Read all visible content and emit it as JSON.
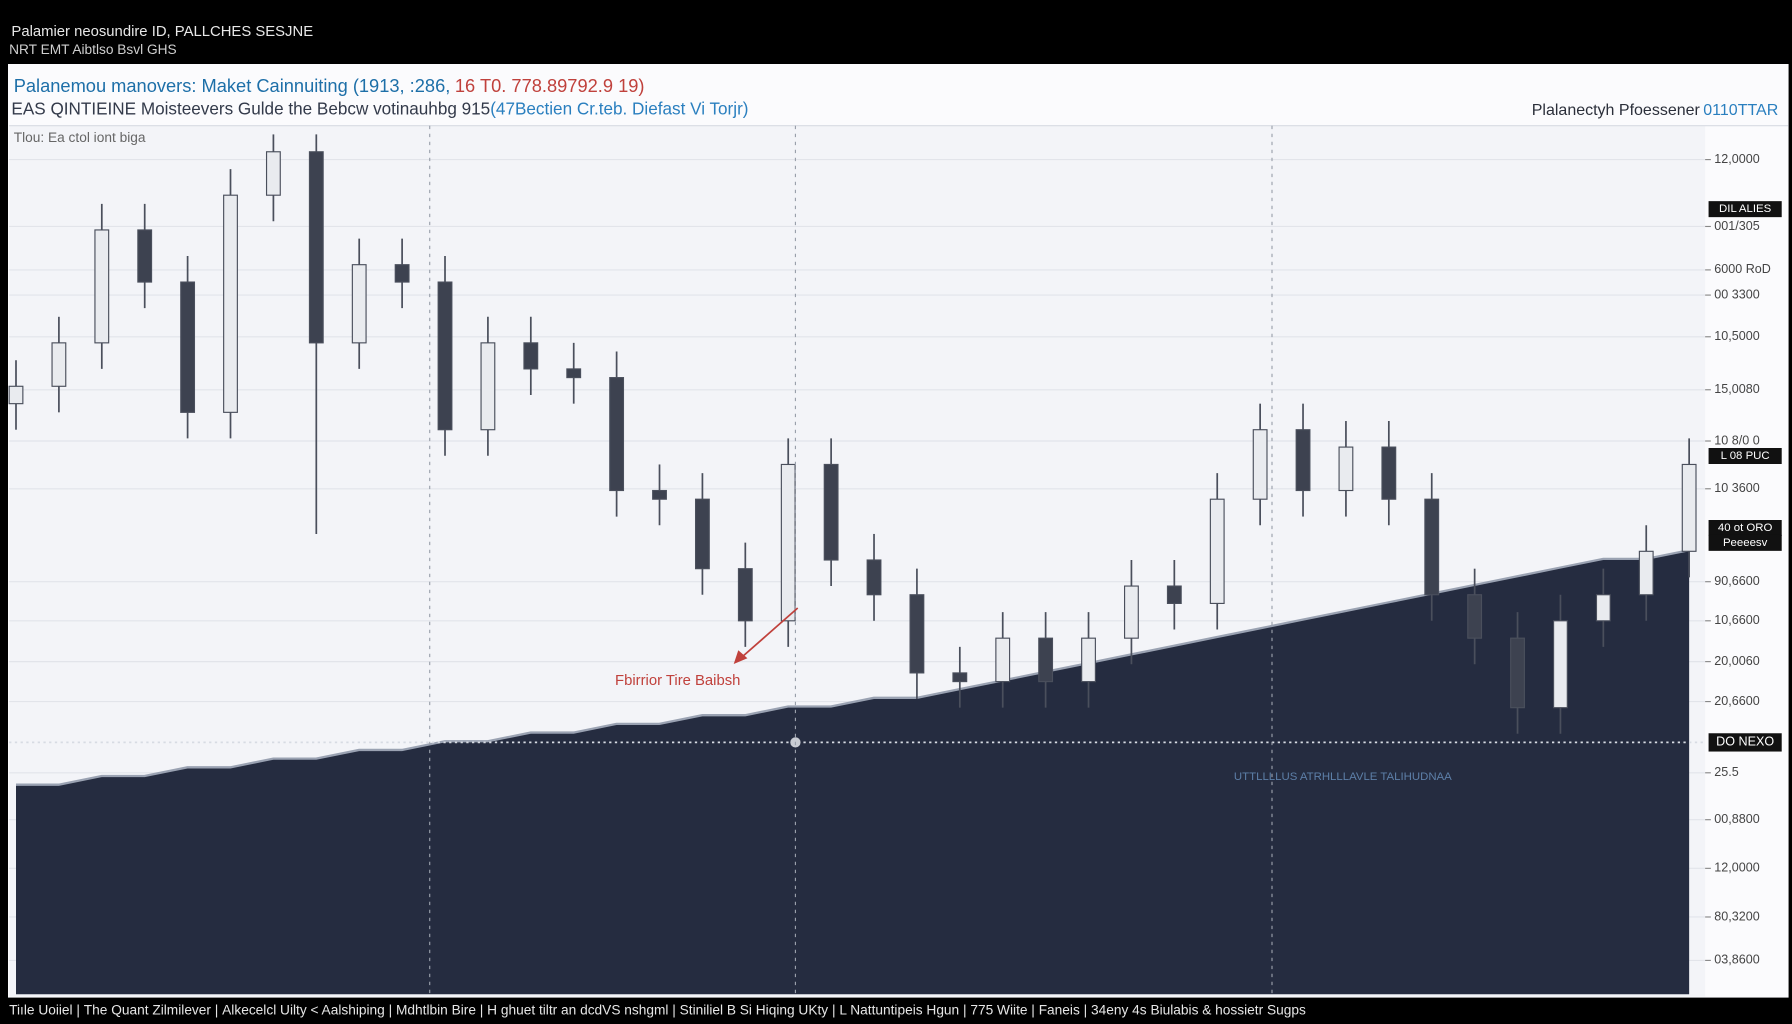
{
  "top_bar": {
    "line1": "Palamier neosundire ID, PALLCHES SESJNE",
    "line2": "NRT EMT Aibtlso Bsvl GHS"
  },
  "chart_data": {
    "type": "candlestick",
    "title": "Palanemou manovers: Maket Cainnuiting (1913, :286,",
    "title_highlight": "16 T0. 778.89792.9 19)",
    "subtitle": "EAS QINTIEINE Moisteevers Gulde the Bebcw votinauhbg 915",
    "subtitle_highlight": "(47Bectien Cr.teb. Diefast Vi Torjr)",
    "header_right": "Plalanectyh Pfoessener",
    "header_right_highlight": "0110TTAR",
    "panel_label": "Tlou: Ea ctol iont biga",
    "annotation": "Fbirrior Tire Baibsh",
    "overlay_note": "UTTLLLLUS  ATRHLLLAVLE TALIHUDNAA",
    "categories": [
      null,
      null,
      null,
      null,
      null,
      null,
      null,
      null,
      null,
      null,
      null,
      null,
      null,
      null,
      null,
      null,
      null,
      null,
      null,
      null,
      null,
      null,
      null,
      null,
      null,
      null,
      null,
      null,
      null,
      null,
      null,
      null,
      null,
      null,
      null,
      null,
      null,
      null,
      null,
      null
    ],
    "open": [
      68,
      70,
      75,
      88,
      82,
      67,
      92,
      97,
      75,
      84,
      82,
      65,
      75,
      72,
      71,
      58,
      57,
      49,
      43,
      61,
      50,
      46,
      37,
      36,
      41,
      36,
      41,
      47,
      45,
      57,
      65,
      58,
      63,
      57,
      46,
      41,
      33,
      43,
      46,
      51
    ],
    "close": [
      70,
      75,
      88,
      82,
      67,
      92,
      97,
      75,
      84,
      82,
      65,
      75,
      72,
      71,
      58,
      57,
      49,
      43,
      61,
      50,
      46,
      37,
      36,
      41,
      36,
      41,
      47,
      45,
      57,
      65,
      58,
      63,
      57,
      46,
      41,
      33,
      43,
      46,
      51,
      61
    ],
    "high": [
      73,
      78,
      91,
      91,
      85,
      95,
      99,
      99,
      87,
      87,
      85,
      78,
      78,
      75,
      74,
      61,
      60,
      52,
      64,
      64,
      53,
      49,
      40,
      44,
      44,
      44,
      50,
      50,
      60,
      68,
      68,
      66,
      66,
      60,
      49,
      44,
      46,
      49,
      54,
      64
    ],
    "low": [
      65,
      67,
      72,
      79,
      64,
      64,
      89,
      53,
      72,
      79,
      62,
      62,
      69,
      68,
      55,
      54,
      46,
      40,
      40,
      47,
      43,
      34,
      33,
      33,
      33,
      33,
      38,
      42,
      42,
      54,
      55,
      55,
      54,
      43,
      38,
      30,
      30,
      40,
      43,
      48
    ],
    "up_color": "#e9ebef",
    "down_color": "#3d4250",
    "area": {
      "color": "#252c40",
      "values": [
        24,
        24,
        25,
        25,
        26,
        26,
        27,
        27,
        28,
        28,
        29,
        29,
        30,
        30,
        31,
        31,
        32,
        32,
        33,
        33,
        34,
        34,
        35,
        36,
        37,
        38,
        39,
        40,
        41,
        42,
        43,
        44,
        45,
        46,
        47,
        48,
        49,
        50,
        50,
        51
      ]
    },
    "ref_line": {
      "value": 29,
      "label": "DO NEXO"
    },
    "badges": [
      "DIL ALIES",
      "L 08 PUC",
      "40 ot ORO",
      "Peeeesv"
    ],
    "ylim": [
      0,
      100
    ],
    "yticks": [
      {
        "value": 96.1,
        "label": "12,0000"
      },
      {
        "value": 88.4,
        "label": "001/305"
      },
      {
        "value": 83.4,
        "label": "6000 RoD"
      },
      {
        "value": 80.5,
        "label": "00 3300"
      },
      {
        "value": 75.7,
        "label": "10,5000"
      },
      {
        "value": 69.6,
        "label": "15,0080"
      },
      {
        "value": 63.7,
        "label": "10 8/0 0"
      },
      {
        "value": 58.2,
        "label": "10 3600"
      },
      {
        "value": 47.5,
        "label": "90,6600"
      },
      {
        "value": 43,
        "label": "10,6600"
      },
      {
        "value": 38.3,
        "label": "20,0060"
      },
      {
        "value": 33.7,
        "label": "20,6600"
      },
      25.5,
      {
        "value": 20.1,
        "label": "00,8800"
      },
      {
        "value": 14.5,
        "label": "12,0000"
      },
      {
        "value": 8.9,
        "label": "80,3200"
      },
      {
        "value": 3.9,
        "label": "03,8600"
      }
    ],
    "grid": true
  },
  "footer": [
    "Tiıle Uoiiel",
    "The Quant Zilmilever",
    "Alkecelcl Uilty < Aalshiping",
    "Mdhtlbin Bire",
    "H ghuet tiltr an dcdVS nshgml",
    "Stiniliel B Si Hiqing UKty",
    "L Nattuntipeis Hgun",
    "775 Wiite",
    "Faneis",
    "34eny 4s Biulabis & hossietr Sugps"
  ]
}
